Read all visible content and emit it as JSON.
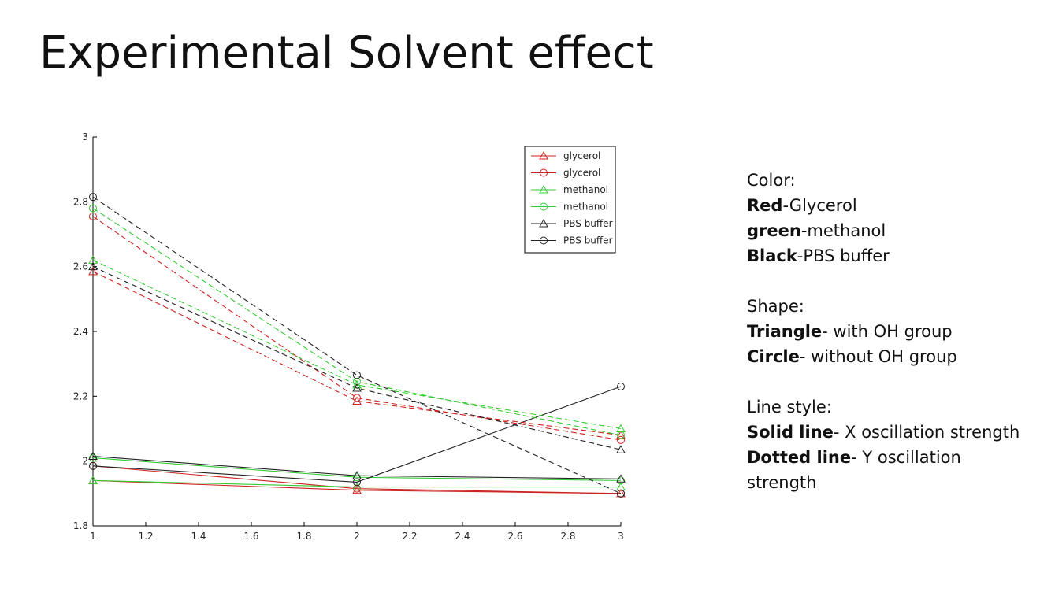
{
  "slide": {
    "title": "Experimental Solvent effect"
  },
  "chart_data": {
    "type": "line",
    "title": "",
    "xlabel": "",
    "ylabel": "",
    "xlim": [
      1,
      3
    ],
    "ylim": [
      1.8,
      3
    ],
    "xticks": [
      "1",
      "1.2",
      "1.4",
      "1.6",
      "1.8",
      "2",
      "2.2",
      "2.4",
      "2.6",
      "2.8",
      "3"
    ],
    "yticks": [
      "1.8",
      "2",
      "2.2",
      "2.4",
      "2.6",
      "2.8",
      "3"
    ],
    "legend_position": "top-right",
    "x": [
      1,
      2,
      3
    ],
    "series": [
      {
        "name": "glycerol",
        "color": "#cc2222",
        "marker": "triangle",
        "line": "solid",
        "values": [
          1.94,
          1.91,
          1.9
        ]
      },
      {
        "name": "glycerol",
        "color": "#cc2222",
        "marker": "circle",
        "line": "solid",
        "values": [
          1.985,
          1.915,
          1.9
        ]
      },
      {
        "name": "methanol",
        "color": "#33cc33",
        "marker": "triangle",
        "line": "solid",
        "values": [
          1.94,
          1.92,
          1.92
        ]
      },
      {
        "name": "methanol",
        "color": "#33cc33",
        "marker": "circle",
        "line": "solid",
        "values": [
          2.01,
          1.95,
          1.94
        ]
      },
      {
        "name": "PBS buffer",
        "color": "#222222",
        "marker": "triangle",
        "line": "solid",
        "values": [
          2.015,
          1.955,
          1.945
        ]
      },
      {
        "name": "PBS buffer",
        "color": "#222222",
        "marker": "circle",
        "line": "solid",
        "values": [
          1.985,
          1.935,
          2.23
        ]
      },
      {
        "name": "glycerol",
        "color": "#cc2222",
        "marker": "triangle",
        "line": "dashed",
        "values": [
          2.585,
          2.185,
          2.08
        ],
        "in_legend": false
      },
      {
        "name": "glycerol",
        "color": "#cc2222",
        "marker": "circle",
        "line": "dashed",
        "values": [
          2.755,
          2.195,
          2.065
        ],
        "in_legend": false
      },
      {
        "name": "methanol",
        "color": "#33cc33",
        "marker": "triangle",
        "line": "dashed",
        "values": [
          2.62,
          2.235,
          2.1
        ],
        "in_legend": false
      },
      {
        "name": "methanol",
        "color": "#33cc33",
        "marker": "circle",
        "line": "dashed",
        "values": [
          2.78,
          2.245,
          2.08
        ],
        "in_legend": false
      },
      {
        "name": "PBS buffer",
        "color": "#222222",
        "marker": "triangle",
        "line": "dashed",
        "values": [
          2.6,
          2.225,
          2.035
        ],
        "in_legend": false
      },
      {
        "name": "PBS buffer",
        "color": "#222222",
        "marker": "circle",
        "line": "dashed",
        "values": [
          2.815,
          2.265,
          1.9
        ],
        "in_legend": false
      }
    ]
  },
  "notes": {
    "color_heading": "Color:",
    "color_items": [
      {
        "key": "Red",
        "text": "-Glycerol"
      },
      {
        "key": "green",
        "text": "-methanol"
      },
      {
        "key": "Black",
        "text": "-PBS buffer"
      }
    ],
    "shape_heading": "Shape:",
    "shape_items": [
      {
        "key": "Triangle",
        "text": "- with OH group"
      },
      {
        "key": "Circle",
        "text": "- without OH group"
      }
    ],
    "line_heading": "Line style:",
    "line_items": [
      {
        "key": "Solid line",
        "text": "- X oscillation strength"
      },
      {
        "key": "Dotted line",
        "text": "- Y oscillation strength"
      }
    ]
  }
}
